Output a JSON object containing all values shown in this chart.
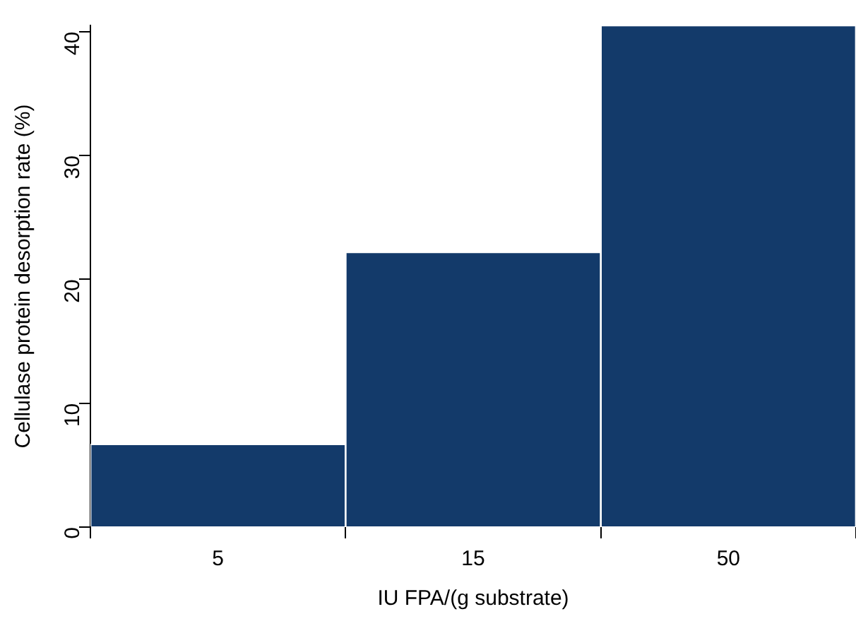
{
  "chart_data": {
    "type": "bar",
    "xlabel": "IU FPA/(g substrate)",
    "ylabel": "Cellulase protein desorption rate (%)",
    "categories": [
      "5",
      "15",
      "50"
    ],
    "values": [
      6.7,
      22.2,
      40.5
    ],
    "color": "#133a6a",
    "ylim": [
      0,
      40.5
    ],
    "yticks": [
      0,
      10,
      20,
      30,
      40
    ],
    "grid": false
  }
}
